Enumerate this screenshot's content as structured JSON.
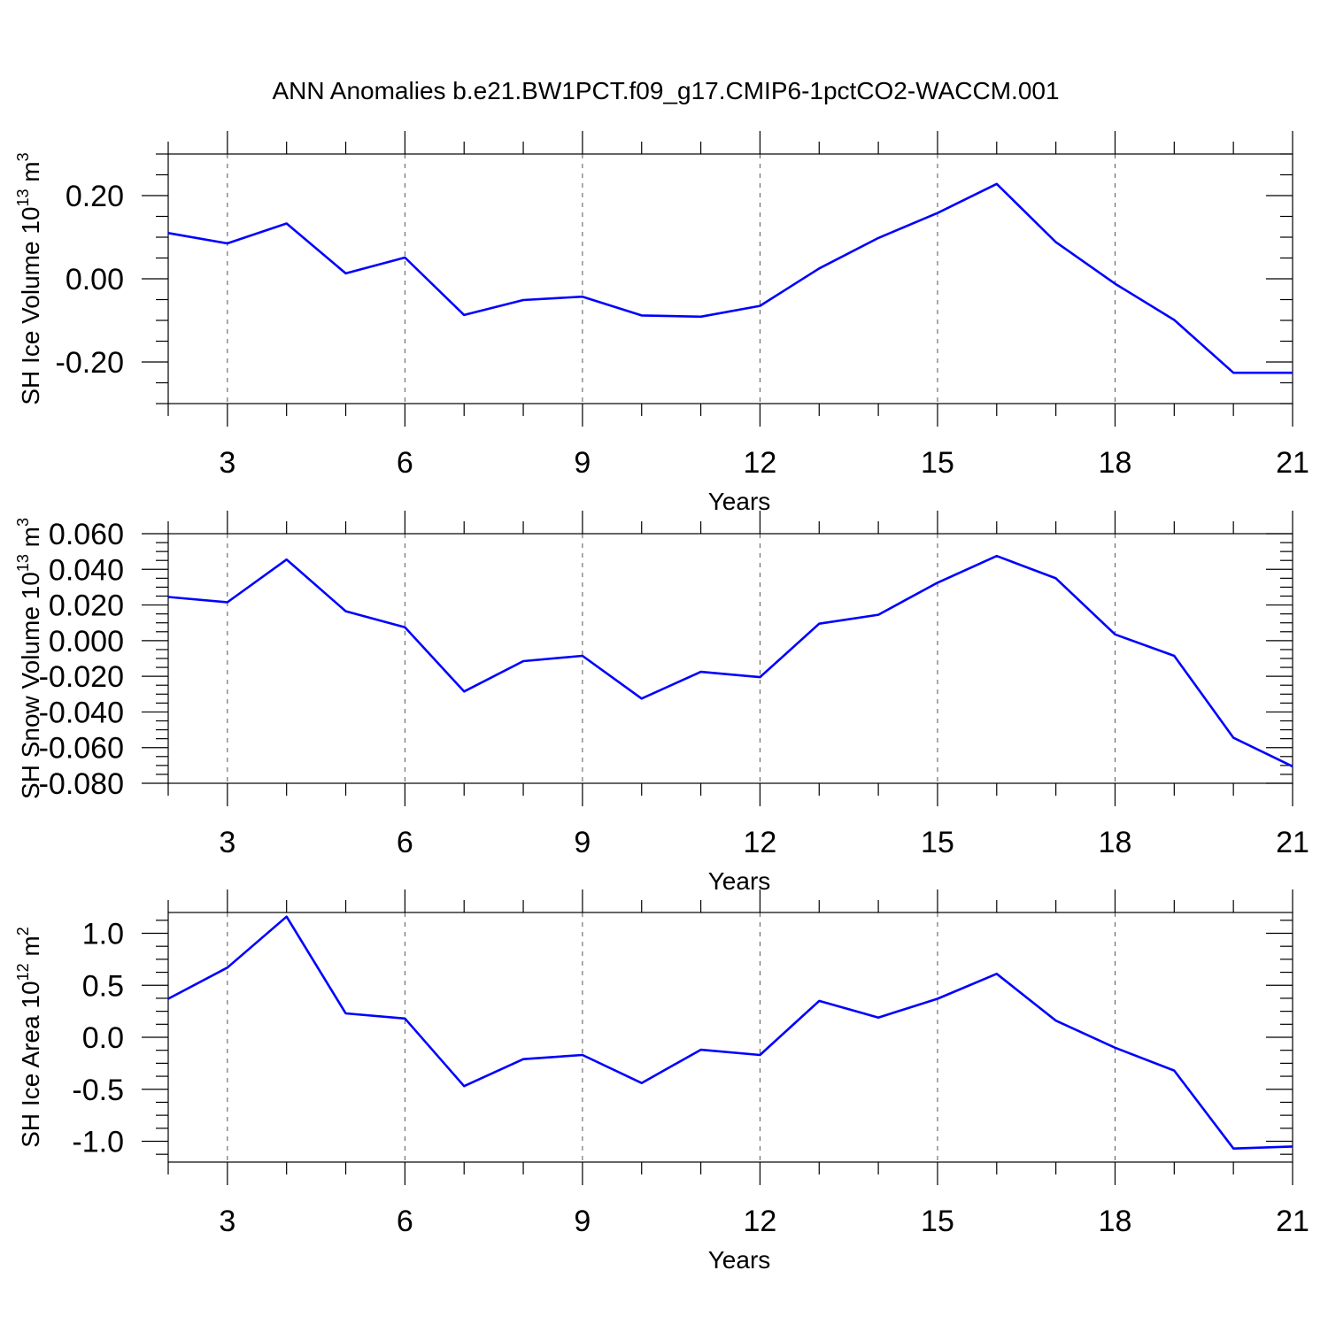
{
  "chart_data": [
    {
      "type": "line",
      "title": "ANN Anomalies b.e21.BW1PCT.f09_g17.CMIP6-1pctCO2-WACCM.001",
      "xlabel": "Years",
      "ylabel": "SH Ice Volume 10",
      "ylabel_exp": "13",
      "ylabel_unit": " m",
      "ylabel_unit_exp": "3",
      "xlim": [
        2,
        21
      ],
      "ylim": [
        -0.3,
        0.3
      ],
      "xticks": [
        3,
        6,
        9,
        12,
        15,
        18,
        21
      ],
      "xtick_labels": [
        "3",
        "6",
        "9",
        "12",
        "15",
        "18",
        "21"
      ],
      "yticks": [
        -0.2,
        0.0,
        0.2
      ],
      "ytick_labels": [
        "-0.20",
        "0.00",
        "0.20"
      ],
      "grid": "vertical dashed at x ticks",
      "series": [
        {
          "name": "SH Ice Volume",
          "color": "#0000ff",
          "x": [
            2,
            3,
            4,
            5,
            6,
            7,
            8,
            9,
            10,
            11,
            12,
            13,
            14,
            15,
            16,
            17,
            18,
            19,
            20,
            21
          ],
          "values": [
            0.11,
            0.085,
            0.133,
            0.013,
            0.051,
            -0.087,
            -0.051,
            -0.043,
            -0.088,
            -0.091,
            -0.065,
            0.025,
            0.098,
            0.158,
            0.228,
            0.088,
            -0.012,
            -0.099,
            -0.226,
            -0.226
          ]
        }
      ]
    },
    {
      "type": "line",
      "title": "",
      "xlabel": "Years",
      "ylabel": "SH Snow Volume 10",
      "ylabel_exp": "13",
      "ylabel_unit": " m",
      "ylabel_unit_exp": "3",
      "xlim": [
        2,
        21
      ],
      "ylim": [
        -0.08,
        0.06
      ],
      "xticks": [
        3,
        6,
        9,
        12,
        15,
        18,
        21
      ],
      "xtick_labels": [
        "3",
        "6",
        "9",
        "12",
        "15",
        "18",
        "21"
      ],
      "yticks": [
        0.06,
        0.04,
        0.02,
        0.0,
        -0.02,
        -0.04,
        -0.06,
        -0.08
      ],
      "ytick_labels": [
        "0.060",
        "0.040",
        "0.020",
        "0.000",
        "-0.020",
        "-0.040",
        "-0.060",
        "-0.080"
      ],
      "grid": "vertical dashed at x ticks",
      "series": [
        {
          "name": "SH Snow Volume",
          "color": "#0000ff",
          "x": [
            2,
            3,
            4,
            5,
            6,
            7,
            8,
            9,
            10,
            11,
            12,
            13,
            14,
            15,
            16,
            17,
            18,
            19,
            20,
            21
          ],
          "values": [
            0.0245,
            0.0215,
            0.0455,
            0.0165,
            0.0075,
            -0.0285,
            -0.0115,
            -0.0085,
            -0.0325,
            -0.0175,
            -0.0205,
            0.0095,
            0.0145,
            0.0325,
            0.0475,
            0.035,
            0.0035,
            -0.0085,
            -0.0545,
            -0.0705
          ]
        }
      ]
    },
    {
      "type": "line",
      "title": "",
      "xlabel": "Years",
      "ylabel": "SH Ice Area 10",
      "ylabel_exp": "12",
      "ylabel_unit": " m",
      "ylabel_unit_exp": "2",
      "xlim": [
        2,
        21
      ],
      "ylim": [
        -1.2,
        1.2
      ],
      "xticks": [
        3,
        6,
        9,
        12,
        15,
        18,
        21
      ],
      "xtick_labels": [
        "3",
        "6",
        "9",
        "12",
        "15",
        "18",
        "21"
      ],
      "yticks": [
        1.0,
        0.5,
        0.0,
        -0.5,
        -1.0
      ],
      "ytick_labels": [
        "1.0",
        "0.5",
        "0.0",
        "-0.5",
        "-1.0"
      ],
      "grid": "vertical dashed at x ticks",
      "series": [
        {
          "name": "SH Ice Area",
          "color": "#0000ff",
          "x": [
            2,
            3,
            4,
            5,
            6,
            7,
            8,
            9,
            10,
            11,
            12,
            13,
            14,
            15,
            16,
            17,
            18,
            19,
            20,
            21
          ],
          "values": [
            0.37,
            0.67,
            1.16,
            0.23,
            0.18,
            -0.47,
            -0.21,
            -0.17,
            -0.44,
            -0.12,
            -0.17,
            0.35,
            0.19,
            0.37,
            0.61,
            0.16,
            -0.1,
            -0.32,
            -1.07,
            -1.05
          ]
        }
      ]
    }
  ]
}
